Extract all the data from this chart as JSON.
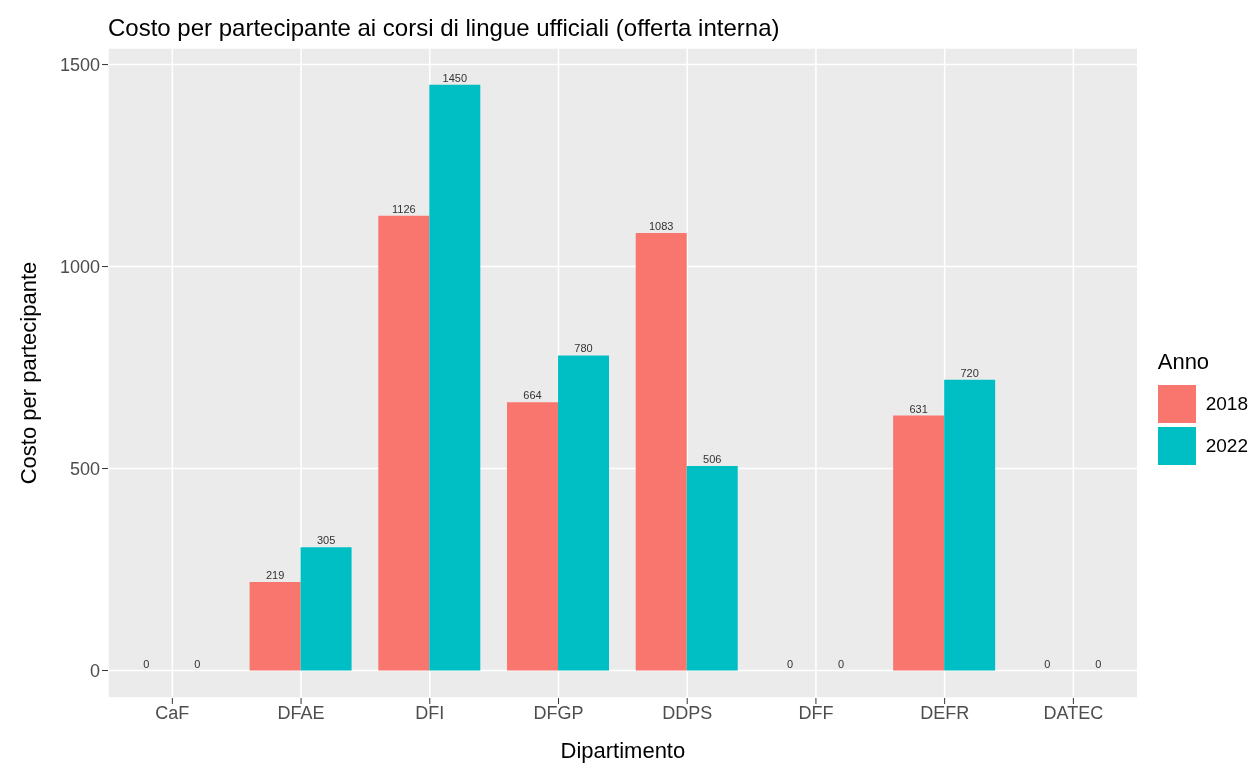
{
  "chart_data": {
    "type": "bar",
    "title": "Costo per partecipante ai corsi di lingue ufficiali (offerta interna)",
    "xlabel": "Dipartimento",
    "ylabel": "Costo per partecipante",
    "legend_title": "Anno",
    "categories": [
      "CaF",
      "DFAE",
      "DFI",
      "DFGP",
      "DDPS",
      "DFF",
      "DEFR",
      "DATEC"
    ],
    "series": [
      {
        "name": "2018",
        "color": "#f8766d",
        "values": [
          0,
          219,
          1126,
          664,
          1083,
          0,
          631,
          0
        ]
      },
      {
        "name": "2022",
        "color": "#00bfc4",
        "values": [
          0,
          305,
          1450,
          780,
          506,
          0,
          720,
          0
        ]
      }
    ],
    "ylim": [
      -68,
      1541
    ],
    "yticks": [
      0,
      500,
      1000,
      1500
    ],
    "grid": true,
    "legend": "right",
    "data_labels": true
  }
}
